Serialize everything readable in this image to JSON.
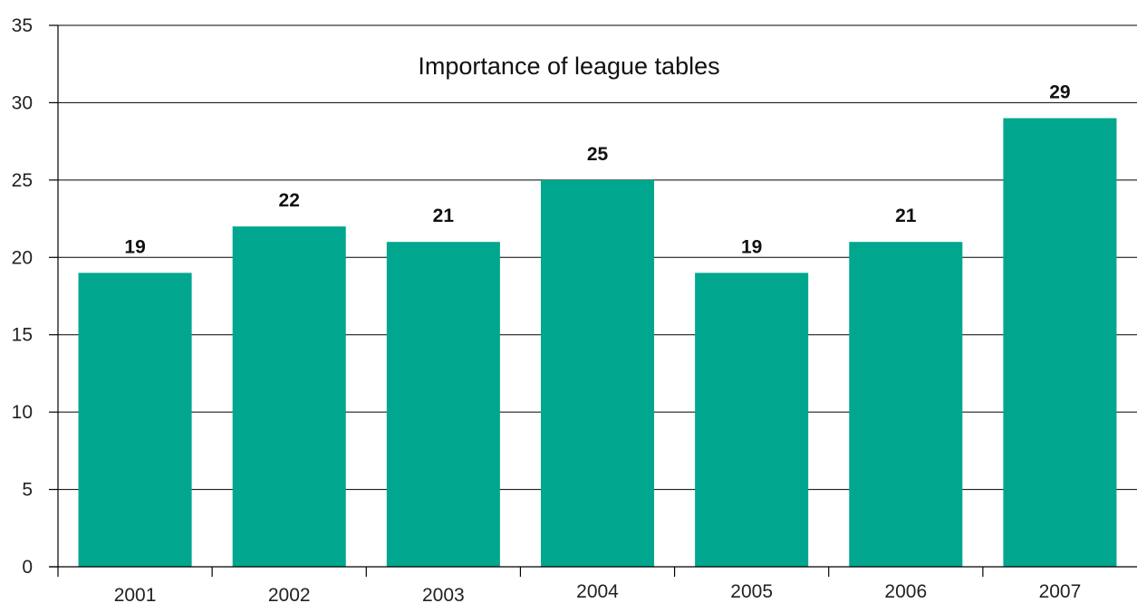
{
  "chart_data": {
    "type": "bar",
    "title": "Importance of league tables",
    "xlabel": "",
    "ylabel": "",
    "categories": [
      "2001",
      "2002",
      "2003",
      "2004",
      "2005",
      "2006",
      "2007"
    ],
    "values": [
      19,
      22,
      21,
      25,
      19,
      21,
      29
    ],
    "data_labels": [
      "19",
      "22",
      "21",
      "25",
      "19",
      "21",
      "29"
    ],
    "ylim": [
      0,
      35
    ],
    "yticks": [
      0,
      5,
      10,
      15,
      20,
      25,
      30,
      35
    ],
    "ytick_labels": [
      "0",
      "5",
      "10",
      "15",
      "20",
      "25",
      "30",
      "35"
    ],
    "grid": true,
    "legend": "none",
    "bar_color": "#00a78e",
    "gridline_color": "#000000"
  }
}
